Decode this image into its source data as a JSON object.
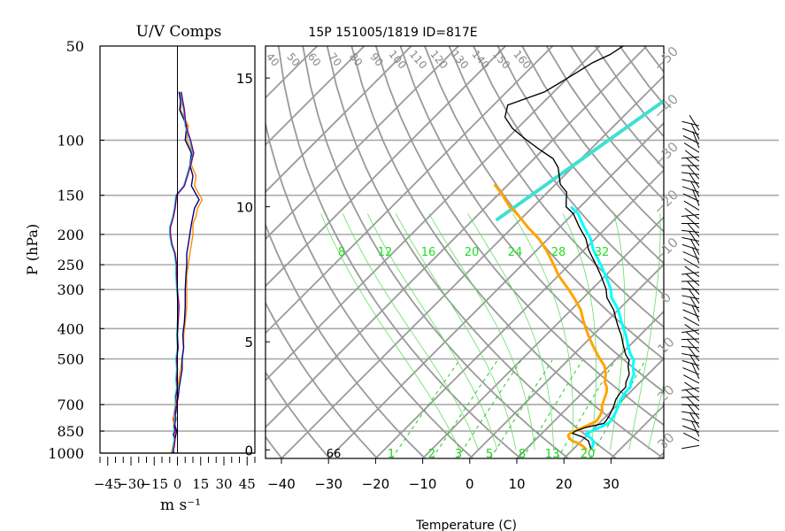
{
  "chart_data": [
    {
      "type": "line",
      "panel": "wind-components",
      "title": "U/V Comps",
      "xlabel": "m s⁻¹",
      "ylabel": "P (hPa)",
      "xlim": [
        -50,
        50
      ],
      "ylim": [
        1000,
        50
      ],
      "y_scale": "log",
      "grid": true,
      "x_ticks": [
        "−45",
        "−30",
        "−15",
        "0",
        "15",
        "30",
        "45"
      ],
      "y_ticks": [
        "1000",
        "850",
        "700",
        "500",
        "400",
        "300",
        "250",
        "200",
        "150",
        "100",
        "50"
      ],
      "series": [
        {
          "color": "#ff8c00",
          "x": [
            -4,
            -3.5,
            -3,
            -2,
            -1.5,
            -1,
            -2,
            -3,
            -2,
            -1.5,
            -1,
            0,
            1,
            2,
            3,
            4,
            4,
            5,
            6,
            6,
            6,
            7,
            8,
            9,
            10,
            10,
            12,
            13,
            16,
            11,
            12,
            9,
            10,
            6,
            7,
            2,
            3,
            1
          ],
          "y": [
            1000,
            980,
            950,
            900,
            870,
            850,
            820,
            780,
            740,
            700,
            660,
            620,
            580,
            540,
            500,
            460,
            420,
            380,
            340,
            300,
            270,
            250,
            230,
            215,
            200,
            185,
            175,
            165,
            155,
            140,
            130,
            120,
            110,
            100,
            90,
            80,
            75,
            70
          ]
        },
        {
          "color": "#000080",
          "x": [
            -2,
            -3,
            -2.5,
            -1.5,
            -1,
            -0.5,
            -1.5,
            -2,
            -1,
            -0.5,
            0.5,
            1,
            2,
            3,
            3,
            4,
            3.5,
            4.5,
            5,
            5,
            5.5,
            6,
            6,
            7,
            8,
            9,
            10,
            11,
            14,
            9,
            10,
            8,
            9,
            5,
            6,
            1.5,
            2,
            1
          ],
          "y": [
            1000,
            980,
            950,
            900,
            870,
            850,
            820,
            780,
            740,
            700,
            660,
            620,
            580,
            540,
            500,
            460,
            420,
            380,
            340,
            300,
            270,
            250,
            230,
            215,
            200,
            185,
            175,
            165,
            155,
            140,
            130,
            120,
            110,
            100,
            90,
            80,
            75,
            70
          ]
        },
        {
          "color": "#00ced1",
          "x": [
            -3.5,
            -3,
            -2.5,
            -2,
            -3,
            -2,
            -2.5,
            -1.5,
            -2,
            -1,
            -1.5,
            -0.5,
            -1,
            -0.5,
            -1,
            0,
            -0.5,
            0,
            0.5,
            -0.5,
            -1,
            -1,
            -2,
            -4,
            -5,
            -5,
            -3,
            -2,
            -1,
            4,
            6,
            8,
            10,
            8,
            5,
            4,
            3,
            2
          ],
          "y": [
            1000,
            980,
            950,
            900,
            870,
            850,
            820,
            780,
            740,
            700,
            660,
            620,
            580,
            540,
            500,
            460,
            420,
            380,
            340,
            300,
            270,
            250,
            230,
            215,
            200,
            190,
            175,
            165,
            150,
            140,
            130,
            120,
            110,
            100,
            90,
            80,
            75,
            70
          ]
        },
        {
          "color": "#800080",
          "x": [
            -3,
            -2.5,
            -2,
            -1.5,
            -2.5,
            -1.5,
            -2,
            -1,
            -1.5,
            -0.5,
            -1,
            0,
            -0.5,
            0,
            -0.5,
            0.5,
            0,
            0.5,
            1,
            0,
            -0.5,
            -0.5,
            -1.5,
            -3.5,
            -4.5,
            -4.5,
            -2.5,
            -1.5,
            -0.5,
            4.5,
            6.5,
            8.5,
            10.5,
            8.5,
            5.5,
            4.5,
            3.5,
            2.5
          ],
          "y": [
            1000,
            980,
            950,
            900,
            870,
            850,
            820,
            780,
            740,
            700,
            660,
            620,
            580,
            540,
            500,
            460,
            420,
            380,
            340,
            300,
            270,
            250,
            230,
            215,
            200,
            190,
            175,
            165,
            150,
            140,
            130,
            120,
            110,
            100,
            90,
            80,
            75,
            70
          ]
        }
      ]
    },
    {
      "type": "line",
      "panel": "skew-t",
      "title": "15P 151005/1819 ID=817E",
      "xlabel": "Temperature (C)",
      "ylabel": "",
      "xlim": [
        -40,
        40
      ],
      "ylim": [
        1050,
        100
      ],
      "x_ticks": [
        "−40",
        "−30",
        "−20",
        "−10",
        "0",
        "10",
        "20",
        "30"
      ],
      "height_ticks": [
        "0",
        "5",
        "10",
        "15"
      ],
      "temp_isotherm_labels": [
        "−50",
        "−40",
        "−30",
        "−20",
        "−10",
        "0",
        "10",
        "20",
        "30"
      ],
      "theta_labels": [
        "40",
        "50",
        "60",
        "70",
        "80",
        "90",
        "100",
        "110",
        "120",
        "130",
        "140",
        "150",
        "160"
      ],
      "mixing_ratio_labels": [
        "8",
        "12",
        "16",
        "20",
        "24",
        "28",
        "32"
      ],
      "bottom_numbers": [
        "66",
        "1",
        "2",
        "3",
        "5",
        "8",
        "13",
        "20"
      ],
      "series": [
        {
          "name": "",
          "color": "#000000",
          "p": [
            1000,
            980,
            960,
            950,
            930,
            920,
            910,
            900,
            880,
            860,
            850,
            820,
            800,
            780,
            750,
            720,
            700,
            680,
            650,
            620,
            600,
            580,
            550,
            520,
            500,
            480,
            450,
            420,
            400,
            370,
            350,
            320,
            300,
            280,
            260,
            250,
            230,
            220,
            200,
            190,
            180,
            170,
            160,
            150,
            140,
            130,
            125,
            120,
            115,
            110,
            105,
            100
          ],
          "t": [
            24,
            23,
            22,
            21.5,
            19.5,
            18,
            16.5,
            16.5,
            18,
            21,
            21,
            20.5,
            20,
            19.5,
            18.5,
            18,
            18,
            17,
            16,
            14,
            13,
            11,
            8.5,
            6,
            4,
            2,
            -1,
            -5,
            -7,
            -11,
            -14,
            -19,
            -22,
            -26,
            -30,
            -33,
            -36,
            -39,
            -43,
            -46,
            -51,
            -56,
            -61,
            -65,
            -67,
            -62,
            -61,
            -60,
            -59,
            -58,
            -56,
            -55
          ]
        },
        {
          "name": "",
          "color": "#00ffff",
          "p": [
            1000,
            980,
            960,
            950,
            930,
            920,
            910,
            900,
            880,
            860,
            850,
            820,
            800,
            780,
            750,
            720,
            700,
            680,
            650,
            620,
            600,
            580,
            550,
            520,
            500,
            480,
            450,
            420,
            400,
            370,
            350,
            320,
            300,
            280,
            260,
            250
          ],
          "t": [
            24,
            23.5,
            23,
            22.5,
            21,
            20,
            19.5,
            20,
            21,
            22,
            22,
            21.5,
            21,
            20.5,
            19.5,
            19,
            19,
            18,
            17,
            15,
            14,
            12,
            9.5,
            7,
            5,
            3,
            0,
            -4,
            -6,
            -10,
            -13,
            -18,
            -21,
            -25,
            -29,
            -32
          ]
        },
        {
          "name": "",
          "color": "#ffa500",
          "p": [
            1000,
            980,
            960,
            950,
            930,
            920,
            910,
            900,
            880,
            860,
            850,
            820,
            800,
            780,
            750,
            720,
            700,
            680,
            650,
            620,
            600,
            580,
            550,
            520,
            500,
            480,
            450,
            420,
            400,
            370,
            350,
            320,
            300,
            280,
            260,
            250,
            230,
            220
          ],
          "t": [
            23,
            21.5,
            19.5,
            18,
            16.5,
            16,
            16,
            16.5,
            17.5,
            18.5,
            19,
            18.5,
            18,
            17,
            16,
            15,
            14,
            12.5,
            11,
            9,
            7,
            5,
            2,
            -1,
            -3,
            -5,
            -8,
            -12,
            -15,
            -20,
            -23,
            -28,
            -32,
            -37,
            -42,
            -45,
            -50,
            -53
          ]
        }
      ],
      "bold_isotherm_line": {
        "color": "#40e0d0"
      }
    }
  ]
}
